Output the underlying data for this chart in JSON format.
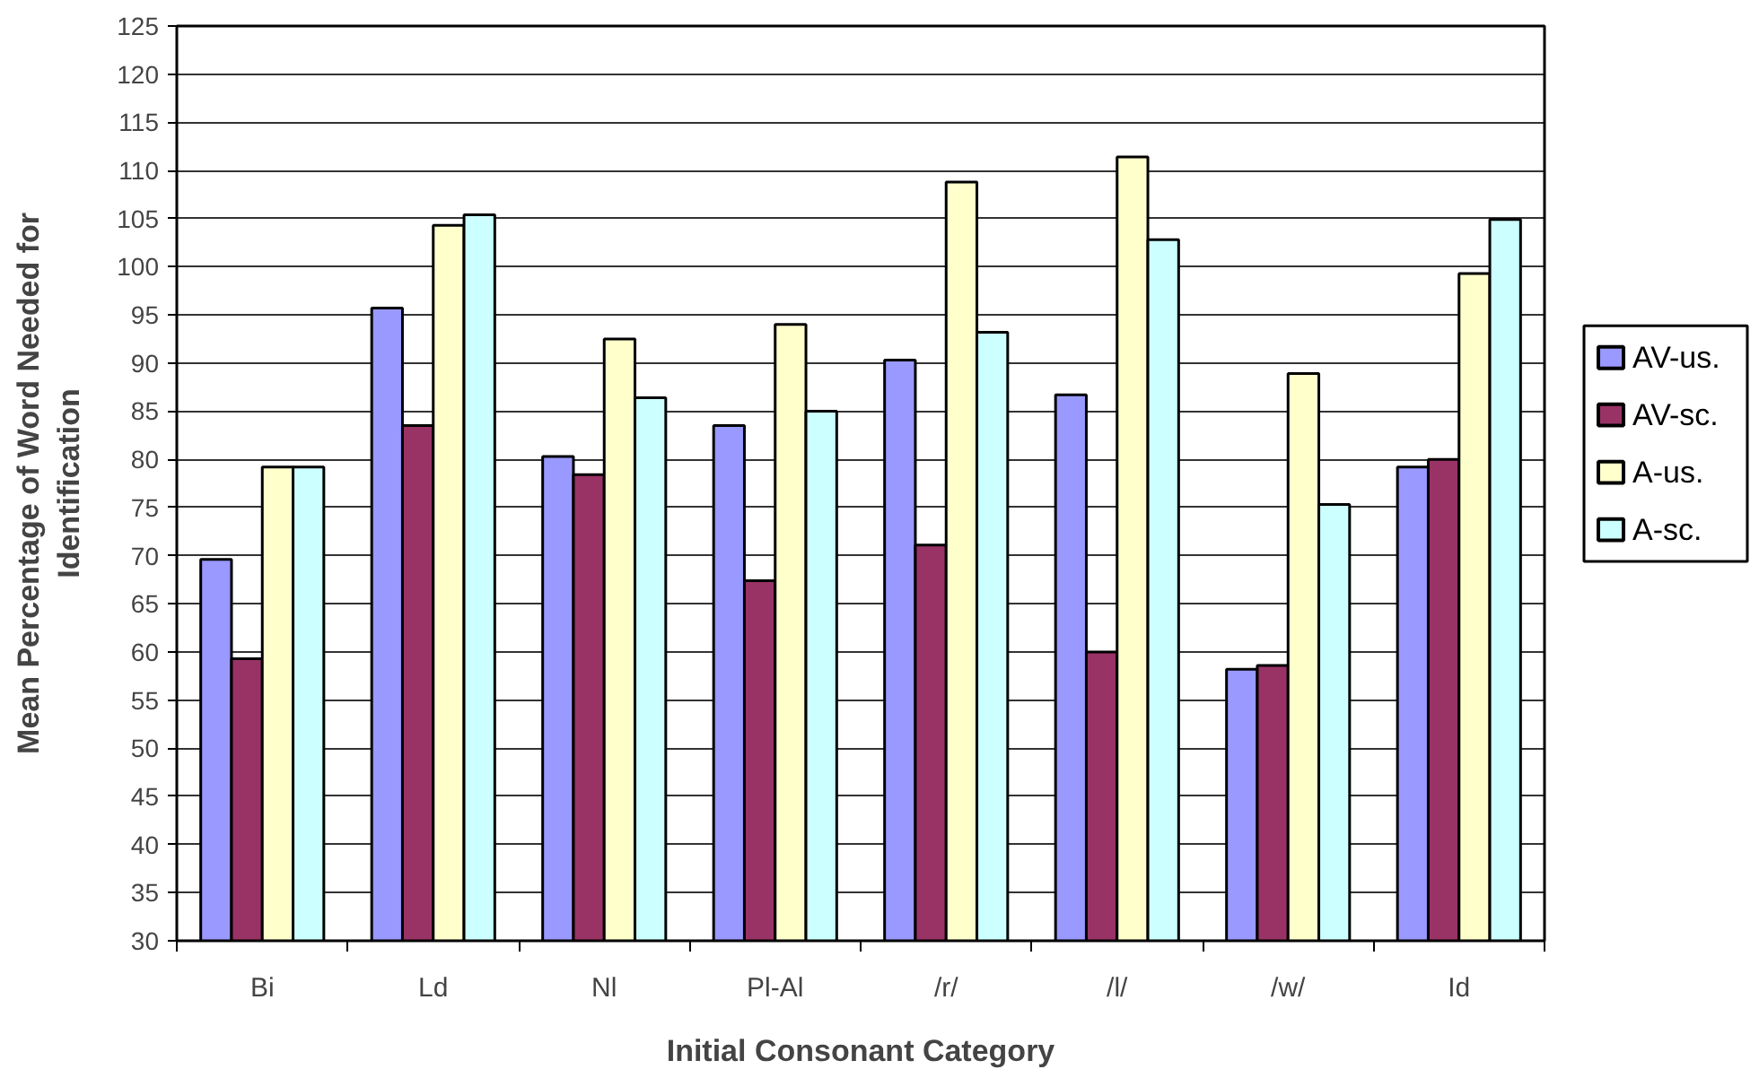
{
  "chart_data": {
    "type": "bar",
    "xlabel": "Initial Consonant Category",
    "ylabel": "Mean Percentage of Word Needed for Identification",
    "categories": [
      "Bi",
      "Ld",
      "Nl",
      "Pl-Al",
      "/r/",
      "/l/",
      "/w/",
      "Id"
    ],
    "series": [
      {
        "name": "AV-us.",
        "color": "#9999ff",
        "values": [
          69.6,
          95.7,
          80.3,
          83.5,
          90.3,
          86.7,
          58.2,
          79.2
        ]
      },
      {
        "name": "AV-sc.",
        "color": "#993366",
        "values": [
          59.3,
          83.5,
          78.4,
          67.4,
          71.1,
          60.0,
          58.6,
          80.0
        ]
      },
      {
        "name": "A-us.",
        "color": "#ffffcc",
        "values": [
          79.2,
          104.3,
          92.5,
          94.0,
          108.8,
          111.4,
          88.9,
          99.3
        ]
      },
      {
        "name": "A-sc.",
        "color": "#ccffff",
        "values": [
          79.2,
          105.4,
          86.4,
          85.0,
          93.2,
          102.8,
          75.3,
          104.9
        ]
      }
    ],
    "ylim": [
      30,
      125
    ],
    "yticks": [
      30,
      35,
      40,
      45,
      50,
      55,
      60,
      65,
      70,
      75,
      80,
      85,
      90,
      95,
      100,
      105,
      110,
      115,
      120,
      125
    ],
    "grid": "y",
    "legend": "right"
  }
}
